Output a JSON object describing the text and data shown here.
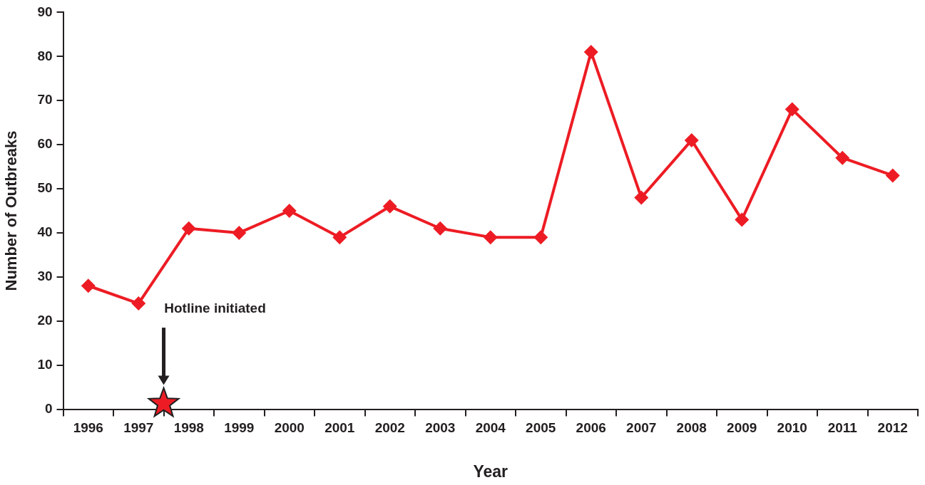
{
  "chart_data": {
    "type": "line",
    "categories": [
      "1996",
      "1997",
      "1998",
      "1999",
      "2000",
      "2001",
      "2002",
      "2003",
      "2004",
      "2005",
      "2006",
      "2007",
      "2008",
      "2009",
      "2010",
      "2011",
      "2012"
    ],
    "series": [
      {
        "color": "#ed1c24",
        "values": [
          28,
          24,
          41,
          40,
          45,
          39,
          46,
          41,
          39,
          39,
          81,
          48,
          61,
          43,
          68,
          57,
          53
        ]
      }
    ],
    "xlabel": "Year",
    "ylabel": "Number of Outbreaks",
    "ylim": [
      0,
      90
    ],
    "yticks": [
      0,
      10,
      20,
      30,
      40,
      50,
      60,
      70,
      80,
      90
    ],
    "marker": "diamond",
    "line_style": "solid",
    "grid": false,
    "legend": false,
    "annotations": [
      "Hotline initiated"
    ]
  }
}
